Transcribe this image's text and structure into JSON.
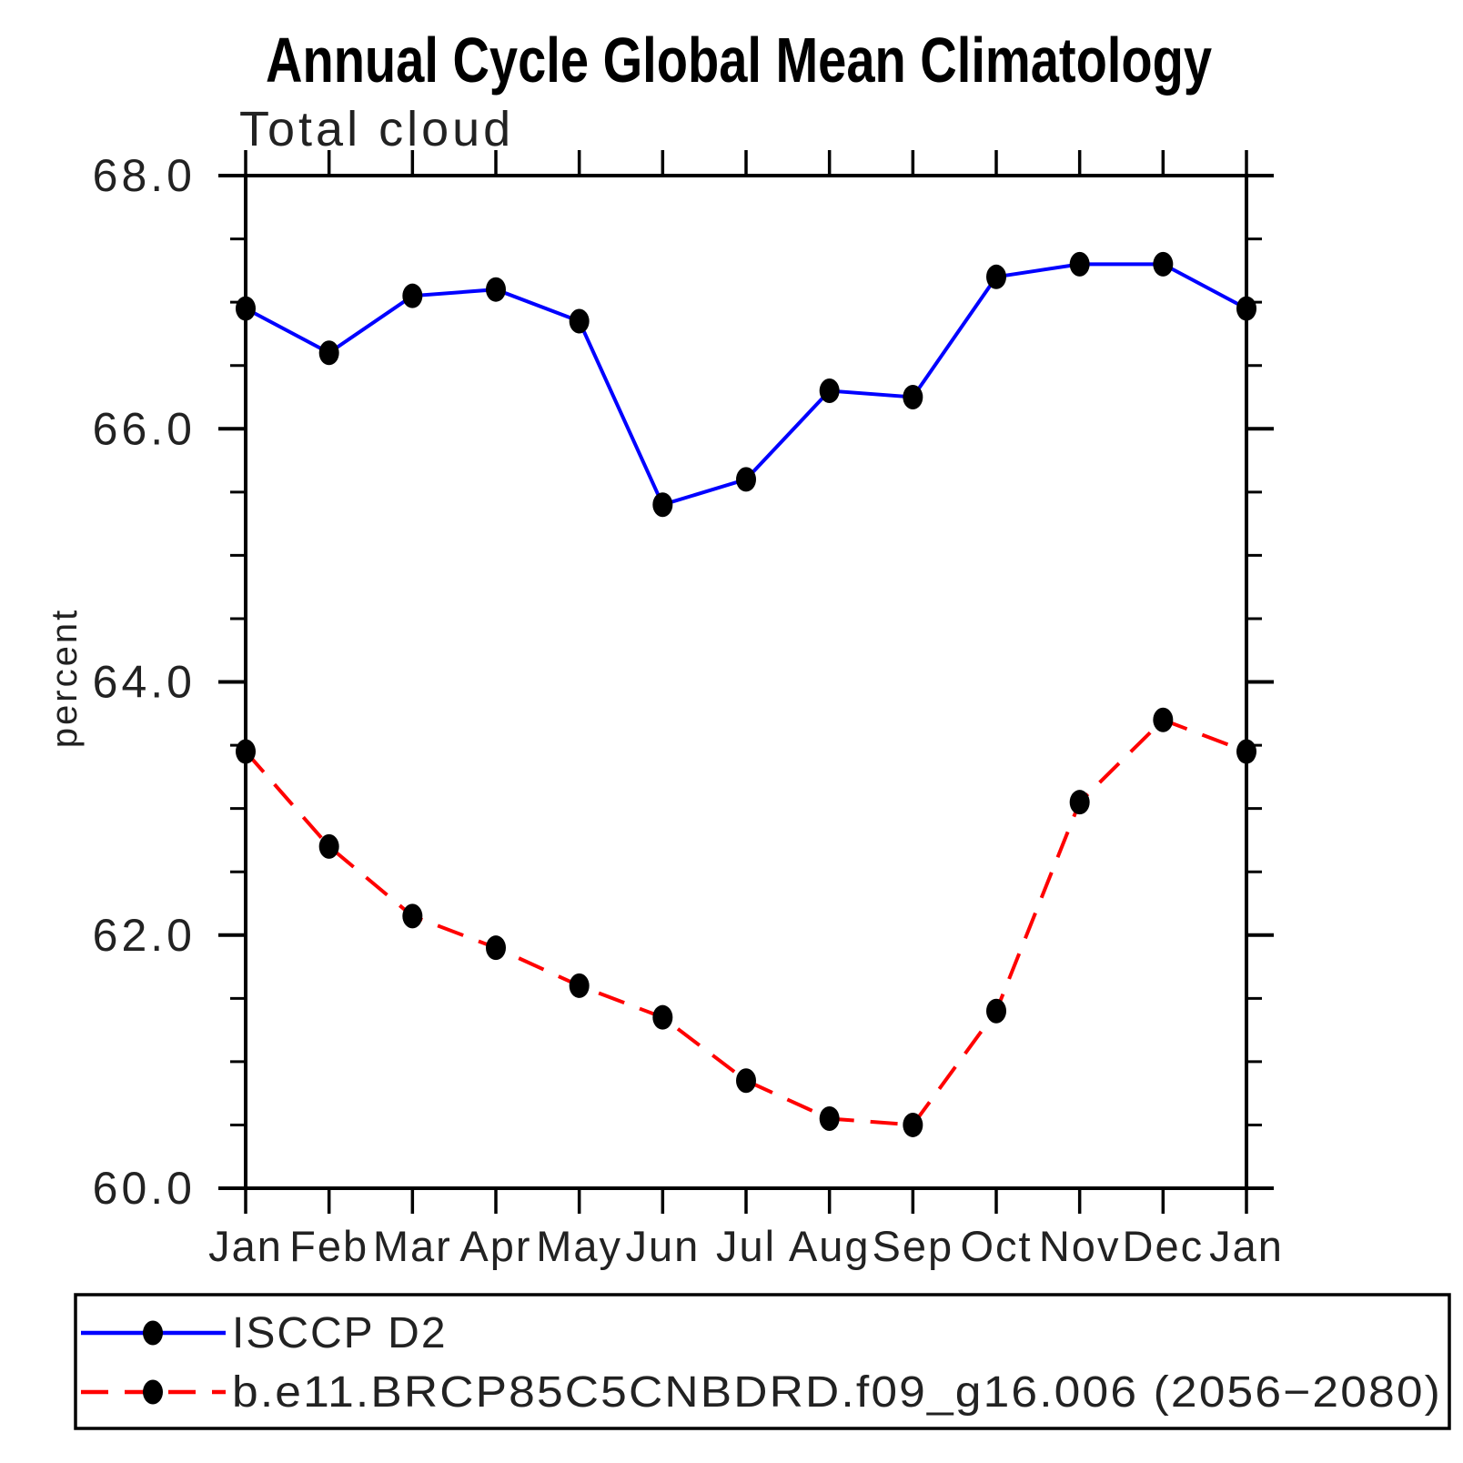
{
  "chart_data": {
    "type": "line",
    "title": "Annual Cycle Global Mean Climatology",
    "subtitle": "Total cloud",
    "ylabel": "percent",
    "xlabel": "",
    "ylim": [
      60.0,
      68.0
    ],
    "ytick_major_interval": 2.0,
    "ytick_minor_interval": 0.5,
    "y_major_ticks": [
      {
        "value": 68.0,
        "label": "68.0"
      },
      {
        "value": 66.0,
        "label": "66.0"
      },
      {
        "value": 64.0,
        "label": "64.0"
      },
      {
        "value": 62.0,
        "label": "62.0"
      },
      {
        "value": 60.0,
        "label": "60.0"
      }
    ],
    "categories": [
      "Jan",
      "Feb",
      "Mar",
      "Apr",
      "May",
      "Jun",
      "Jul",
      "Aug",
      "Sep",
      "Oct",
      "Nov",
      "Dec",
      "Jan"
    ],
    "grid": false,
    "legend_position": "bottom-left-box",
    "marker_color": "#000000",
    "axis_color": "#000000",
    "series": [
      {
        "name": "ISCCP D2",
        "color": "#0000ff",
        "line_style": "solid",
        "marker": "filled-circle",
        "values": [
          66.95,
          66.6,
          67.05,
          67.1,
          66.85,
          65.4,
          65.6,
          66.3,
          66.25,
          67.2,
          67.3,
          67.3,
          66.95
        ]
      },
      {
        "name": "b.e11.BRCP85C5CNBDRD.f09_g16.006 (2056−2080)",
        "color": "#ff0000",
        "line_style": "dashed",
        "marker": "filled-circle",
        "values": [
          63.45,
          62.7,
          62.15,
          61.9,
          61.6,
          61.35,
          60.85,
          60.55,
          60.5,
          61.4,
          63.05,
          63.7,
          63.45
        ]
      }
    ]
  }
}
